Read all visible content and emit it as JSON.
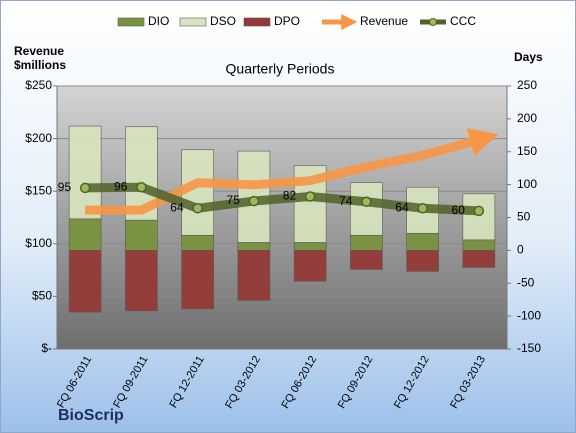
{
  "chart_data": {
    "type": "combo",
    "title": "Quarterly Periods",
    "ylabel": [
      "Revenue",
      "$millions"
    ],
    "y2label": "Days",
    "footer": "BioScrip",
    "categories": [
      "FQ 06-2011",
      "FQ 09-2011",
      "FQ 12-2011",
      "FQ 03-2012",
      "FQ 06-2012",
      "FQ 09-2012",
      "FQ 12-2012",
      "FQ 03-2013"
    ],
    "series": [
      {
        "name": "DIO",
        "type": "bar",
        "axis": "y2",
        "color": "#77933c",
        "values": [
          48,
          46,
          23,
          12,
          12,
          23,
          26,
          16
        ]
      },
      {
        "name": "DSO",
        "type": "bar",
        "axis": "y2",
        "color": "#d7e4bd",
        "values": [
          141,
          142,
          130,
          139,
          117,
          80,
          70,
          70
        ]
      },
      {
        "name": "DPO",
        "type": "bar",
        "axis": "y2",
        "color": "#953735",
        "values": [
          -94,
          -92,
          -89,
          -76,
          -47,
          -29,
          -32,
          -26
        ]
      },
      {
        "name": "Revenue",
        "type": "arrow",
        "axis": "y",
        "color": "#f79646",
        "values": [
          132,
          132,
          158,
          156,
          160,
          173,
          184,
          199
        ]
      },
      {
        "name": "CCC",
        "type": "line",
        "axis": "y2",
        "color": "#4f6228",
        "values": [
          95,
          96,
          64,
          75,
          82,
          74,
          64,
          60
        ]
      }
    ],
    "ylim": [
      0,
      250
    ],
    "yticks": [
      {
        "value": 0,
        "label": "$-"
      },
      {
        "value": 50,
        "label": "$50"
      },
      {
        "value": 100,
        "label": "$100"
      },
      {
        "value": 150,
        "label": "$150"
      },
      {
        "value": 200,
        "label": "$200"
      },
      {
        "value": 250,
        "label": "$250"
      }
    ],
    "y2lim": [
      -150,
      250
    ],
    "y2ticks": [
      -150,
      -100,
      -50,
      0,
      50,
      100,
      150,
      200,
      250
    ],
    "grid": true,
    "legend": "top"
  }
}
